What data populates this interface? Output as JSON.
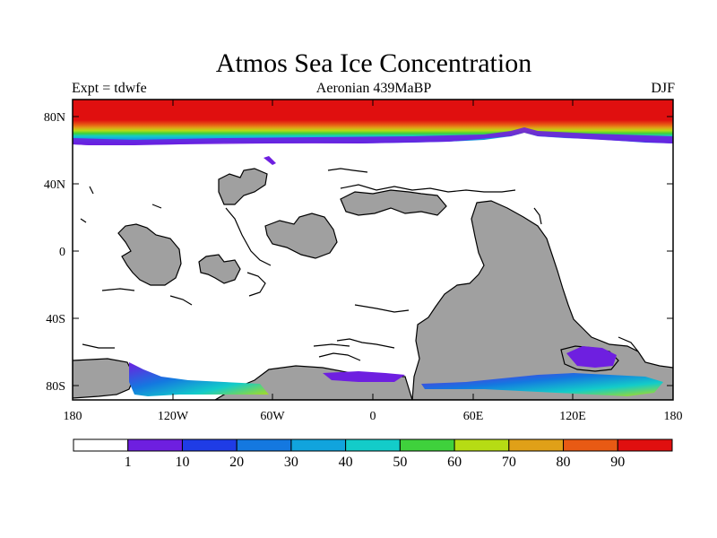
{
  "title": "Atmos Sea Ice Concentration",
  "expt_label": "Expt = tdwfe",
  "subtitle": "Aeronian 439MaBP",
  "season": "DJF",
  "lat_ticks": [
    "80N",
    "40N",
    "0",
    "40S",
    "80S"
  ],
  "lon_ticks": [
    "180",
    "120W",
    "60W",
    "0",
    "60E",
    "120E",
    "180"
  ],
  "colorbar": {
    "colors": [
      "#ffffff",
      "#6e1fe0",
      "#1f3ce6",
      "#1478e0",
      "#11a4dd",
      "#13ccc9",
      "#3fd13c",
      "#b6dc14",
      "#e0a018",
      "#e85a14",
      "#e00f0f"
    ],
    "labels": [
      "1",
      "10",
      "20",
      "30",
      "40",
      "50",
      "60",
      "70",
      "80",
      "90"
    ]
  },
  "colors": {
    "land": "#a0a0a0",
    "coast": "#000000"
  }
}
